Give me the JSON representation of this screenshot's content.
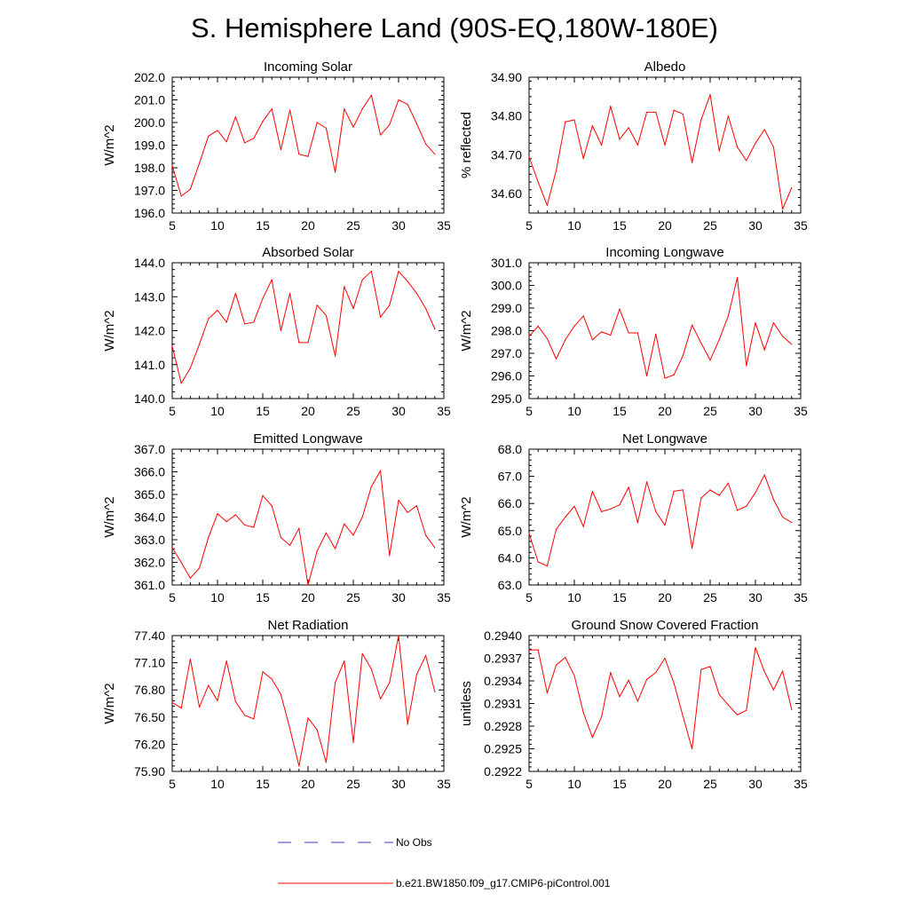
{
  "title": "S. Hemisphere Land (90S-EQ,180W-180E)",
  "colors": {
    "model": "#ff0000",
    "obs": "#3b3bc4",
    "axis": "#000000"
  },
  "legend": {
    "obs_label": "No Obs",
    "model_label": "b.e21.BW1850.f09_g17.CMIP6-piControl.001"
  },
  "chart_data": [
    {
      "type": "line",
      "title": "Incoming Solar",
      "ylabel": "W/m^2",
      "xlim": [
        5,
        35
      ],
      "xticks": [
        "5",
        "10",
        "15",
        "20",
        "25",
        "30",
        "35"
      ],
      "ylim": [
        196.0,
        202.0
      ],
      "yticks": [
        "196.0",
        "197.0",
        "198.0",
        "199.0",
        "200.0",
        "201.0",
        "202.0"
      ],
      "x": [
        5,
        6,
        7,
        8,
        9,
        10,
        11,
        12,
        13,
        14,
        15,
        16,
        17,
        18,
        19,
        20,
        21,
        22,
        23,
        24,
        25,
        26,
        27,
        28,
        29,
        30,
        31,
        32,
        33,
        34
      ],
      "series": [
        {
          "name": "b.e21.BW1850.f09_g17.CMIP6-piControl.001",
          "values": [
            198.1,
            196.75,
            197.05,
            198.2,
            199.4,
            199.65,
            199.15,
            200.25,
            199.1,
            199.3,
            200.05,
            200.6,
            198.8,
            200.55,
            198.6,
            198.5,
            200.0,
            199.75,
            197.8,
            200.6,
            199.8,
            200.6,
            201.2,
            199.45,
            199.9,
            201.0,
            200.8,
            199.95,
            199.05,
            198.6
          ]
        }
      ]
    },
    {
      "type": "line",
      "title": "Albedo",
      "ylabel": "% reflected",
      "xlim": [
        5,
        35
      ],
      "xticks": [
        "5",
        "10",
        "15",
        "20",
        "25",
        "30",
        "35"
      ],
      "ylim": [
        34.55,
        34.9
      ],
      "yticks": [
        "34.60",
        "34.70",
        "34.80",
        "34.90"
      ],
      "x": [
        5,
        6,
        7,
        8,
        9,
        10,
        11,
        12,
        13,
        14,
        15,
        16,
        17,
        18,
        19,
        20,
        21,
        22,
        23,
        24,
        25,
        26,
        27,
        28,
        29,
        30,
        31,
        32,
        33,
        34
      ],
      "series": [
        {
          "name": "b.e21.BW1850.f09_g17.CMIP6-piControl.001",
          "values": [
            34.695,
            34.63,
            34.57,
            34.66,
            34.785,
            34.79,
            34.69,
            34.775,
            34.725,
            34.825,
            34.74,
            34.77,
            34.725,
            34.81,
            34.81,
            34.725,
            34.815,
            34.805,
            34.68,
            34.79,
            34.855,
            34.71,
            34.8,
            34.72,
            34.685,
            34.73,
            34.765,
            34.72,
            34.56,
            34.615
          ]
        }
      ]
    },
    {
      "type": "line",
      "title": "Absorbed Solar",
      "ylabel": "W/m^2",
      "xlim": [
        5,
        35
      ],
      "xticks": [
        "5",
        "10",
        "15",
        "20",
        "25",
        "30",
        "35"
      ],
      "ylim": [
        140.0,
        144.0
      ],
      "yticks": [
        "140.0",
        "141.0",
        "142.0",
        "143.0",
        "144.0"
      ],
      "x": [
        5,
        6,
        7,
        8,
        9,
        10,
        11,
        12,
        13,
        14,
        15,
        16,
        17,
        18,
        19,
        20,
        21,
        22,
        23,
        24,
        25,
        26,
        27,
        28,
        29,
        30,
        31,
        32,
        33,
        34
      ],
      "series": [
        {
          "name": "b.e21.BW1850.f09_g17.CMIP6-piControl.001",
          "values": [
            141.55,
            140.45,
            140.9,
            141.6,
            142.35,
            142.6,
            142.25,
            143.1,
            142.2,
            142.25,
            142.95,
            143.5,
            142.0,
            143.1,
            141.65,
            141.65,
            142.75,
            142.45,
            141.25,
            143.3,
            142.65,
            143.5,
            143.75,
            142.4,
            142.75,
            143.75,
            143.45,
            143.1,
            142.65,
            142.05
          ]
        }
      ]
    },
    {
      "type": "line",
      "title": "Incoming Longwave",
      "ylabel": "W/m^2",
      "xlim": [
        5,
        35
      ],
      "xticks": [
        "5",
        "10",
        "15",
        "20",
        "25",
        "30",
        "35"
      ],
      "ylim": [
        295.0,
        301.0
      ],
      "yticks": [
        "295.0",
        "296.0",
        "297.0",
        "298.0",
        "299.0",
        "300.0",
        "301.0"
      ],
      "x": [
        5,
        6,
        7,
        8,
        9,
        10,
        11,
        12,
        13,
        14,
        15,
        16,
        17,
        18,
        19,
        20,
        21,
        22,
        23,
        24,
        25,
        26,
        27,
        28,
        29,
        30,
        31,
        32,
        33,
        34
      ],
      "series": [
        {
          "name": "b.e21.BW1850.f09_g17.CMIP6-piControl.001",
          "values": [
            297.75,
            298.2,
            297.65,
            296.75,
            297.6,
            298.2,
            298.65,
            297.6,
            297.95,
            297.8,
            298.95,
            297.9,
            297.9,
            296.0,
            297.85,
            295.9,
            296.05,
            296.9,
            298.25,
            297.45,
            296.7,
            297.6,
            298.65,
            300.35,
            296.45,
            298.35,
            297.15,
            298.35,
            297.75,
            297.4
          ]
        }
      ]
    },
    {
      "type": "line",
      "title": "Emitted Longwave",
      "ylabel": "W/m^2",
      "xlim": [
        5,
        35
      ],
      "xticks": [
        "5",
        "10",
        "15",
        "20",
        "25",
        "30",
        "35"
      ],
      "ylim": [
        361.0,
        367.0
      ],
      "yticks": [
        "361.0",
        "362.0",
        "363.0",
        "364.0",
        "365.0",
        "366.0",
        "367.0"
      ],
      "x": [
        5,
        6,
        7,
        8,
        9,
        10,
        11,
        12,
        13,
        14,
        15,
        16,
        17,
        18,
        19,
        20,
        21,
        22,
        23,
        24,
        25,
        26,
        27,
        28,
        29,
        30,
        31,
        32,
        33,
        34
      ],
      "series": [
        {
          "name": "b.e21.BW1850.f09_g17.CMIP6-piControl.001",
          "values": [
            362.65,
            362.0,
            361.3,
            361.75,
            363.1,
            364.15,
            363.8,
            364.1,
            363.65,
            363.55,
            364.95,
            364.5,
            363.1,
            362.75,
            363.5,
            361.0,
            362.5,
            363.3,
            362.6,
            363.7,
            363.2,
            364.0,
            365.35,
            366.05,
            362.3,
            364.75,
            364.2,
            364.5,
            363.2,
            362.65
          ]
        }
      ]
    },
    {
      "type": "line",
      "title": "Net Longwave",
      "ylabel": "W/m^2",
      "xlim": [
        5,
        35
      ],
      "xticks": [
        "5",
        "10",
        "15",
        "20",
        "25",
        "30",
        "35"
      ],
      "ylim": [
        63.0,
        68.0
      ],
      "yticks": [
        "63.0",
        "64.0",
        "65.0",
        "66.0",
        "67.0",
        "68.0"
      ],
      "x": [
        5,
        6,
        7,
        8,
        9,
        10,
        11,
        12,
        13,
        14,
        15,
        16,
        17,
        18,
        19,
        20,
        21,
        22,
        23,
        24,
        25,
        26,
        27,
        28,
        29,
        30,
        31,
        32,
        33,
        34
      ],
      "series": [
        {
          "name": "b.e21.BW1850.f09_g17.CMIP6-piControl.001",
          "values": [
            64.9,
            63.85,
            63.7,
            65.05,
            65.5,
            65.9,
            65.15,
            66.45,
            65.7,
            65.8,
            65.95,
            66.6,
            65.3,
            66.8,
            65.7,
            65.2,
            66.45,
            66.5,
            64.35,
            66.2,
            66.5,
            66.3,
            66.75,
            65.75,
            65.9,
            66.4,
            67.05,
            66.15,
            65.5,
            65.3
          ]
        }
      ]
    },
    {
      "type": "line",
      "title": "Net Radiation",
      "ylabel": "W/m^2",
      "xlim": [
        5,
        35
      ],
      "xticks": [
        "5",
        "10",
        "15",
        "20",
        "25",
        "30",
        "35"
      ],
      "ylim": [
        75.9,
        77.4
      ],
      "yticks": [
        "75.90",
        "76.20",
        "76.50",
        "76.80",
        "77.10",
        "77.40"
      ],
      "x": [
        5,
        6,
        7,
        8,
        9,
        10,
        11,
        12,
        13,
        14,
        15,
        16,
        17,
        18,
        19,
        20,
        21,
        22,
        23,
        24,
        25,
        26,
        27,
        28,
        29,
        30,
        31,
        32,
        33,
        34
      ],
      "series": [
        {
          "name": "b.e21.BW1850.f09_g17.CMIP6-piControl.001",
          "values": [
            76.66,
            76.6,
            77.14,
            76.61,
            76.85,
            76.68,
            77.12,
            76.67,
            76.52,
            76.48,
            77.0,
            76.92,
            76.75,
            76.37,
            75.96,
            76.49,
            76.36,
            76.0,
            76.88,
            77.12,
            76.22,
            77.2,
            77.03,
            76.7,
            76.88,
            77.4,
            76.42,
            76.97,
            77.18,
            76.78
          ]
        }
      ]
    },
    {
      "type": "line",
      "title": "Ground Snow Covered Fraction",
      "ylabel": "unitless",
      "xlim": [
        5,
        35
      ],
      "xticks": [
        "5",
        "10",
        "15",
        "20",
        "25",
        "30",
        "35"
      ],
      "ylim": [
        0.2922,
        0.294
      ],
      "yticks": [
        "0.2922",
        "0.2925",
        "0.2928",
        "0.2931",
        "0.2934",
        "0.2937",
        "0.2940"
      ],
      "x": [
        5,
        6,
        7,
        8,
        9,
        10,
        11,
        12,
        13,
        14,
        15,
        16,
        17,
        18,
        19,
        20,
        21,
        22,
        23,
        24,
        25,
        26,
        27,
        28,
        29,
        30,
        31,
        32,
        33,
        34
      ],
      "series": [
        {
          "name": "b.e21.BW1850.f09_g17.CMIP6-piControl.001",
          "values": [
            0.29381,
            0.29381,
            0.29324,
            0.29361,
            0.29371,
            0.29347,
            0.29298,
            0.29265,
            0.29292,
            0.29351,
            0.29319,
            0.29341,
            0.29313,
            0.29342,
            0.29351,
            0.2937,
            0.29337,
            0.29293,
            0.2925,
            0.29355,
            0.29359,
            0.29322,
            0.29308,
            0.29295,
            0.29301,
            0.29384,
            0.29352,
            0.29328,
            0.29353,
            0.29302
          ]
        }
      ]
    }
  ]
}
